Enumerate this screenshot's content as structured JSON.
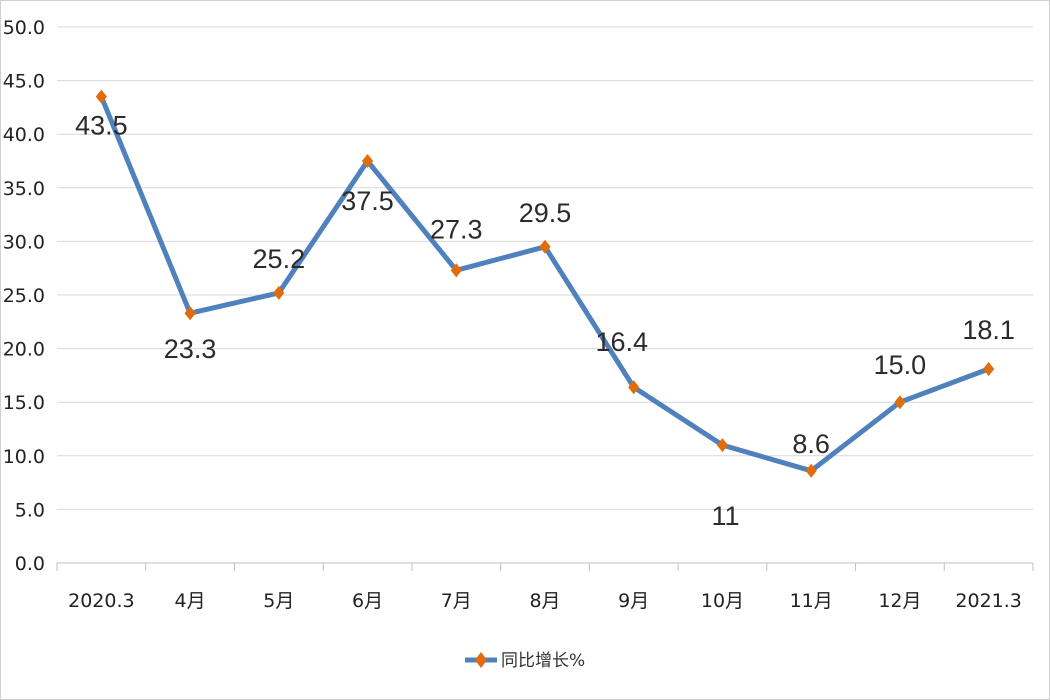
{
  "chart_data": {
    "type": "line",
    "categories": [
      "2020.3",
      "4月",
      "5月",
      "6月",
      "7月",
      "8月",
      "9月",
      "10月",
      "11月",
      "12月",
      "2021.3"
    ],
    "series": [
      {
        "name": "同比增长%",
        "values": [
          43.5,
          23.3,
          25.2,
          37.5,
          27.3,
          29.5,
          16.4,
          11,
          8.6,
          15.0,
          18.1
        ],
        "labels": [
          "43.5",
          "23.3",
          "25.2",
          "37.5",
          "27.3",
          "29.5",
          "16.4",
          "11",
          "8.6",
          "15.0",
          "18.1"
        ],
        "line_color": "#4f81bd",
        "marker_color": "#e36c0a",
        "marker": "diamond"
      }
    ],
    "y_ticks": [
      "0.0",
      "5.0",
      "10.0",
      "15.0",
      "20.0",
      "25.0",
      "30.0",
      "35.0",
      "40.0",
      "45.0",
      "50.0"
    ],
    "ylim": [
      0,
      50
    ],
    "grid": true,
    "legend_position": "bottom"
  }
}
